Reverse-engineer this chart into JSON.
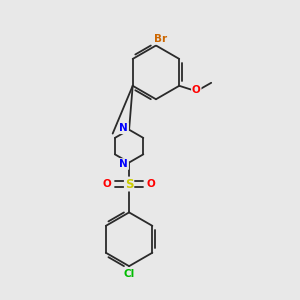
{
  "background_color": "#e8e8e8",
  "bond_color": "#2a2a2a",
  "atom_colors": {
    "Br": "#cc6600",
    "N": "#0000ff",
    "O": "#ff0000",
    "S": "#cccc00",
    "Cl": "#00bb00",
    "C": "#2a2a2a"
  },
  "font_size": 7.5,
  "figsize": [
    3.0,
    3.0
  ],
  "dpi": 100,
  "lw": 1.3
}
